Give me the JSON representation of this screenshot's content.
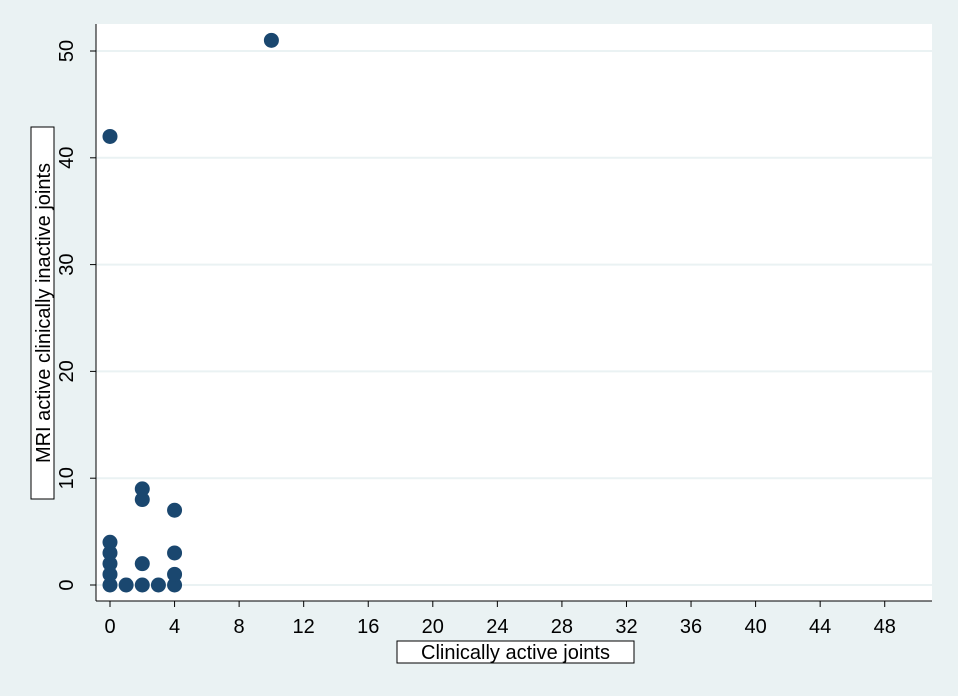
{
  "chart_data": {
    "type": "scatter",
    "xlabel": "Clinically active joints",
    "ylabel": "MRI active clinically inactive joints",
    "xlim": [
      -1,
      51
    ],
    "ylim": [
      -1.5,
      54
    ],
    "xticks": [
      0,
      4,
      8,
      12,
      16,
      20,
      24,
      28,
      32,
      36,
      40,
      44,
      48
    ],
    "yticks": [
      0,
      10,
      20,
      30,
      40,
      50
    ],
    "grid": "horizontal",
    "marker_color": "#1a476f",
    "background_color": "#eaf2f3",
    "points": [
      {
        "x": 0,
        "y": 42
      },
      {
        "x": 10,
        "y": 51
      },
      {
        "x": 0,
        "y": 0
      },
      {
        "x": 0,
        "y": 1
      },
      {
        "x": 0,
        "y": 2
      },
      {
        "x": 0,
        "y": 3
      },
      {
        "x": 0,
        "y": 4
      },
      {
        "x": 1,
        "y": 0
      },
      {
        "x": 2,
        "y": 0
      },
      {
        "x": 2,
        "y": 2
      },
      {
        "x": 2,
        "y": 8
      },
      {
        "x": 2,
        "y": 9
      },
      {
        "x": 3,
        "y": 0
      },
      {
        "x": 4,
        "y": 0
      },
      {
        "x": 4,
        "y": 1
      },
      {
        "x": 4,
        "y": 3
      },
      {
        "x": 4,
        "y": 7
      }
    ]
  }
}
